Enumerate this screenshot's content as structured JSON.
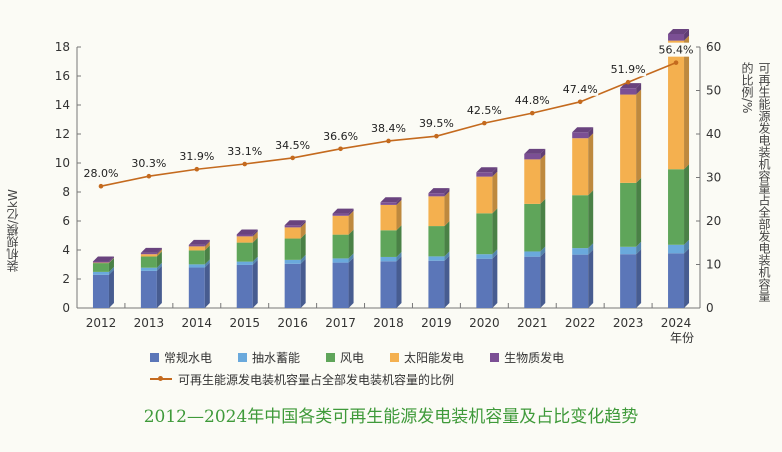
{
  "chart_data": {
    "type": "bar",
    "stacked": true,
    "title": "2012—2024年中国各类可再生能源发电装机容量及占比变化趋势",
    "xlabel": "年份",
    "ylabel": "装机规模/亿kW",
    "y2label": "可再生能源发电装机容量占全部发电装机容量的比例/%",
    "ylim": [
      0,
      18
    ],
    "y2lim": [
      0,
      60
    ],
    "yticks": [
      0,
      2,
      4,
      6,
      8,
      10,
      12,
      14,
      16,
      18
    ],
    "y2ticks": [
      0,
      10,
      20,
      30,
      40,
      50,
      60
    ],
    "categories": [
      "2012",
      "2013",
      "2014",
      "2015",
      "2016",
      "2017",
      "2018",
      "2019",
      "2020",
      "2021",
      "2022",
      "2023",
      "2024"
    ],
    "series": [
      {
        "name": "常规水电",
        "color": "#5b76b8",
        "values": [
          2.29,
          2.56,
          2.79,
          2.97,
          3.05,
          3.13,
          3.22,
          3.26,
          3.4,
          3.54,
          3.68,
          3.71,
          3.77
        ]
      },
      {
        "name": "抽水蓄能",
        "color": "#6aa9dc",
        "values": [
          0.2,
          0.22,
          0.22,
          0.23,
          0.27,
          0.29,
          0.3,
          0.3,
          0.31,
          0.36,
          0.45,
          0.51,
          0.59
        ]
      },
      {
        "name": "风电",
        "color": "#5fa55a",
        "values": [
          0.61,
          0.77,
          0.96,
          1.31,
          1.47,
          1.64,
          1.84,
          2.09,
          2.82,
          3.28,
          3.65,
          4.41,
          5.21
        ]
      },
      {
        "name": "太阳能发电",
        "color": "#f4b04f",
        "values": [
          0.03,
          0.16,
          0.28,
          0.43,
          0.77,
          1.3,
          1.75,
          2.05,
          2.53,
          3.07,
          3.93,
          6.09,
          8.87
        ]
      },
      {
        "name": "生物质发电",
        "color": "#7b4f94",
        "values": [
          0.08,
          0.09,
          0.1,
          0.13,
          0.15,
          0.15,
          0.18,
          0.22,
          0.3,
          0.38,
          0.41,
          0.44,
          0.46
        ]
      }
    ],
    "line": {
      "name": "可再生能源发电装机容量占全部发电装机容量的比例",
      "axis": "right",
      "color": "#c46a1e",
      "values": [
        28.0,
        30.3,
        31.9,
        33.1,
        34.5,
        36.6,
        38.4,
        39.5,
        42.5,
        44.8,
        47.4,
        51.9,
        56.4
      ],
      "labels": [
        "28.0%",
        "30.3%",
        "31.9%",
        "33.1%",
        "34.5%",
        "36.6%",
        "38.4%",
        "39.5%",
        "42.5%",
        "44.8%",
        "47.4%",
        "51.9%",
        "56.4%"
      ]
    },
    "legend": "bottom",
    "grid": false
  }
}
